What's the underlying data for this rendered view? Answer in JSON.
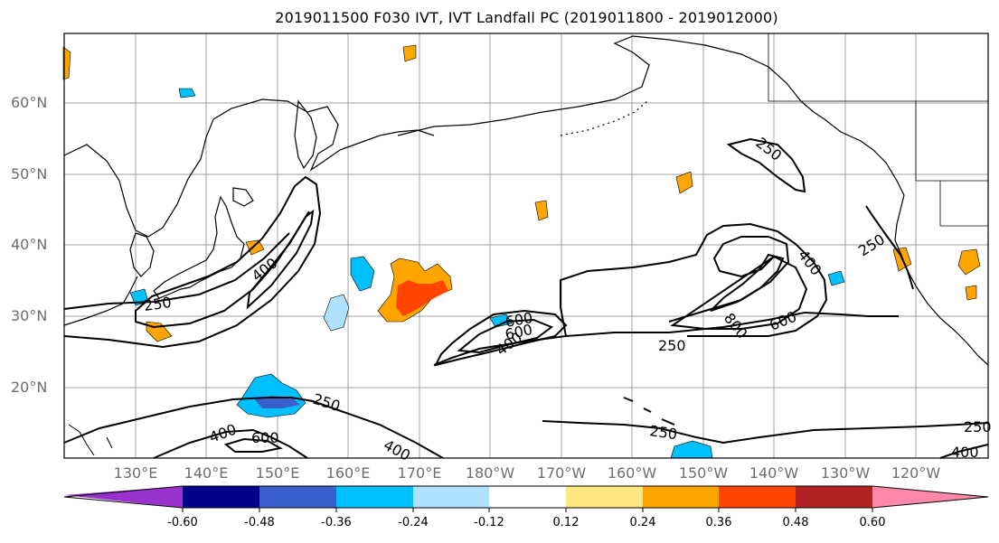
{
  "title": "2019011500 F030 IVT, IVT Landfall PC (2019011800 - 2019012000)",
  "lat_labels": [
    "60°N",
    "50°N",
    "40°N",
    "30°N",
    "20°N"
  ],
  "lon_labels": [
    "130°E",
    "140°E",
    "150°E",
    "160°E",
    "170°E",
    "180°W",
    "170°W",
    "160°W",
    "150°W",
    "140°W",
    "130°W",
    "120°W"
  ],
  "contour_labels": [
    "250",
    "400",
    "250",
    "250",
    "400",
    "600",
    "400",
    "600",
    "250",
    "250",
    "400",
    "600",
    "800",
    "250",
    "400",
    "600",
    "250",
    "400"
  ],
  "colorbar": {
    "tick_labels": [
      "-0.60",
      "-0.48",
      "-0.36",
      "-0.24",
      "-0.12",
      "0.12",
      "0.24",
      "0.36",
      "0.48",
      "0.60"
    ],
    "colors": [
      "#9932cc",
      "#00008b",
      "#3a5fcd",
      "#00bfff",
      "#b0e2ff",
      "#ffffff",
      "#ffe680",
      "#ffa500",
      "#ff4500",
      "#b22222",
      "#ff88aa"
    ]
  },
  "colors": {
    "grid": "#a0a0a0",
    "contour": "#000000",
    "axis_label": "#6e6e6e"
  }
}
